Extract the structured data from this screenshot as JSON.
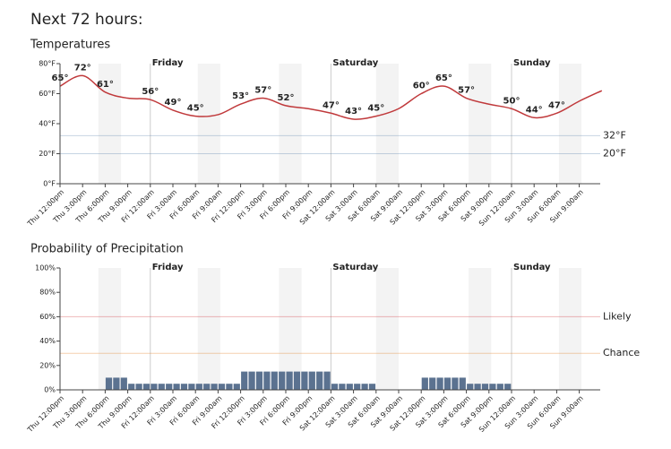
{
  "title": "Next 72 hours:",
  "chart_data": [
    {
      "type": "line",
      "title": "Temperatures",
      "color": "#c0393b",
      "categories": [
        "Thu 12:00pm",
        "Thu 3:00pm",
        "Thu 6:00pm",
        "Thu 9:00pm",
        "Fri 12:00am",
        "Fri 3:00am",
        "Fri 6:00am",
        "Fri 9:00am",
        "Fri 12:00pm",
        "Fri 3:00pm",
        "Fri 6:00pm",
        "Fri 9:00pm",
        "Sat 12:00am",
        "Sat 3:00am",
        "Sat 6:00am",
        "Sat 9:00am",
        "Sat 12:00pm",
        "Sat 3:00pm",
        "Sat 6:00pm",
        "Sat 9:00pm",
        "Sun 12:00am",
        "Sun 3:00am",
        "Sun 6:00am",
        "Sun 9:00am",
        null
      ],
      "values": [
        65,
        72,
        61,
        57,
        56,
        49,
        45,
        46,
        53,
        57,
        52,
        50,
        47,
        43,
        45,
        50,
        60,
        65,
        57,
        53,
        50,
        44,
        47,
        55,
        62
      ],
      "value_labels": [
        "65°",
        "72°",
        "61°",
        null,
        "56°",
        "49°",
        "45°",
        null,
        "53°",
        "57°",
        "52°",
        null,
        "47°",
        "43°",
        "45°",
        null,
        "60°",
        "65°",
        "57°",
        null,
        "50°",
        "44°",
        "47°",
        null,
        null
      ],
      "ylim": [
        0,
        80
      ],
      "yticks": [
        {
          "value": 0,
          "label": "0°F"
        },
        {
          "value": 20,
          "label": "20°F"
        },
        {
          "value": 40,
          "label": "40°F"
        },
        {
          "value": 60,
          "label": "60°F"
        },
        {
          "value": 80,
          "label": "80°F"
        }
      ],
      "days": [
        "Friday",
        "Saturday",
        "Sunday"
      ],
      "thresholds": [
        {
          "value": 32,
          "label": "32°F",
          "color": "#5b84b0"
        },
        {
          "value": 20,
          "label": "20°F",
          "color": "#5b84b0"
        }
      ]
    },
    {
      "type": "bar",
      "title": "Probability of Precipitation",
      "color": "#5b7290",
      "categories": [
        "Thu 12:00pm",
        null,
        null,
        "Thu 3:00pm",
        null,
        null,
        "Thu 6:00pm",
        null,
        null,
        "Thu 9:00pm",
        null,
        null,
        "Fri 12:00am",
        null,
        null,
        "Fri 3:00am",
        null,
        null,
        "Fri 6:00am",
        null,
        null,
        "Fri 9:00am",
        null,
        null,
        "Fri 12:00pm",
        null,
        null,
        "Fri 3:00pm",
        null,
        null,
        "Fri 6:00pm",
        null,
        null,
        "Fri 9:00pm",
        null,
        null,
        "Sat 12:00am",
        null,
        null,
        "Sat 3:00am",
        null,
        null,
        "Sat 6:00am",
        null,
        null,
        "Sat 9:00am",
        null,
        null,
        "Sat 12:00pm",
        null,
        null,
        "Sat 3:00pm",
        null,
        null,
        "Sat 6:00pm",
        null,
        null,
        "Sat 9:00pm",
        null,
        null,
        "Sun 12:00am",
        null,
        null,
        "Sun 3:00am",
        null,
        null,
        "Sun 6:00am",
        null,
        null,
        "Sun 9:00am",
        null,
        null
      ],
      "values": [
        0,
        0,
        0,
        0,
        0,
        0,
        10,
        10,
        10,
        5,
        5,
        5,
        5,
        5,
        5,
        5,
        5,
        5,
        5,
        5,
        5,
        5,
        5,
        5,
        15,
        15,
        15,
        15,
        15,
        15,
        15,
        15,
        15,
        15,
        15,
        15,
        5,
        5,
        5,
        5,
        5,
        5,
        0,
        0,
        0,
        0,
        0,
        0,
        10,
        10,
        10,
        10,
        10,
        10,
        5,
        5,
        5,
        5,
        5,
        5,
        0,
        0,
        0,
        0,
        0,
        0,
        0,
        0,
        0,
        0,
        0,
        0
      ],
      "ylim": [
        0,
        100
      ],
      "yticks": [
        {
          "value": 0,
          "label": "0%"
        },
        {
          "value": 20,
          "label": "20%"
        },
        {
          "value": 40,
          "label": "40%"
        },
        {
          "value": 60,
          "label": "60%"
        },
        {
          "value": 80,
          "label": "80%"
        },
        {
          "value": 100,
          "label": "100%"
        }
      ],
      "days": [
        "Friday",
        "Saturday",
        "Sunday"
      ],
      "thresholds": [
        {
          "value": 60,
          "label": "Likely",
          "color": "#d0333a"
        },
        {
          "value": 30,
          "label": "Chance",
          "color": "#e07b1a"
        }
      ]
    }
  ]
}
